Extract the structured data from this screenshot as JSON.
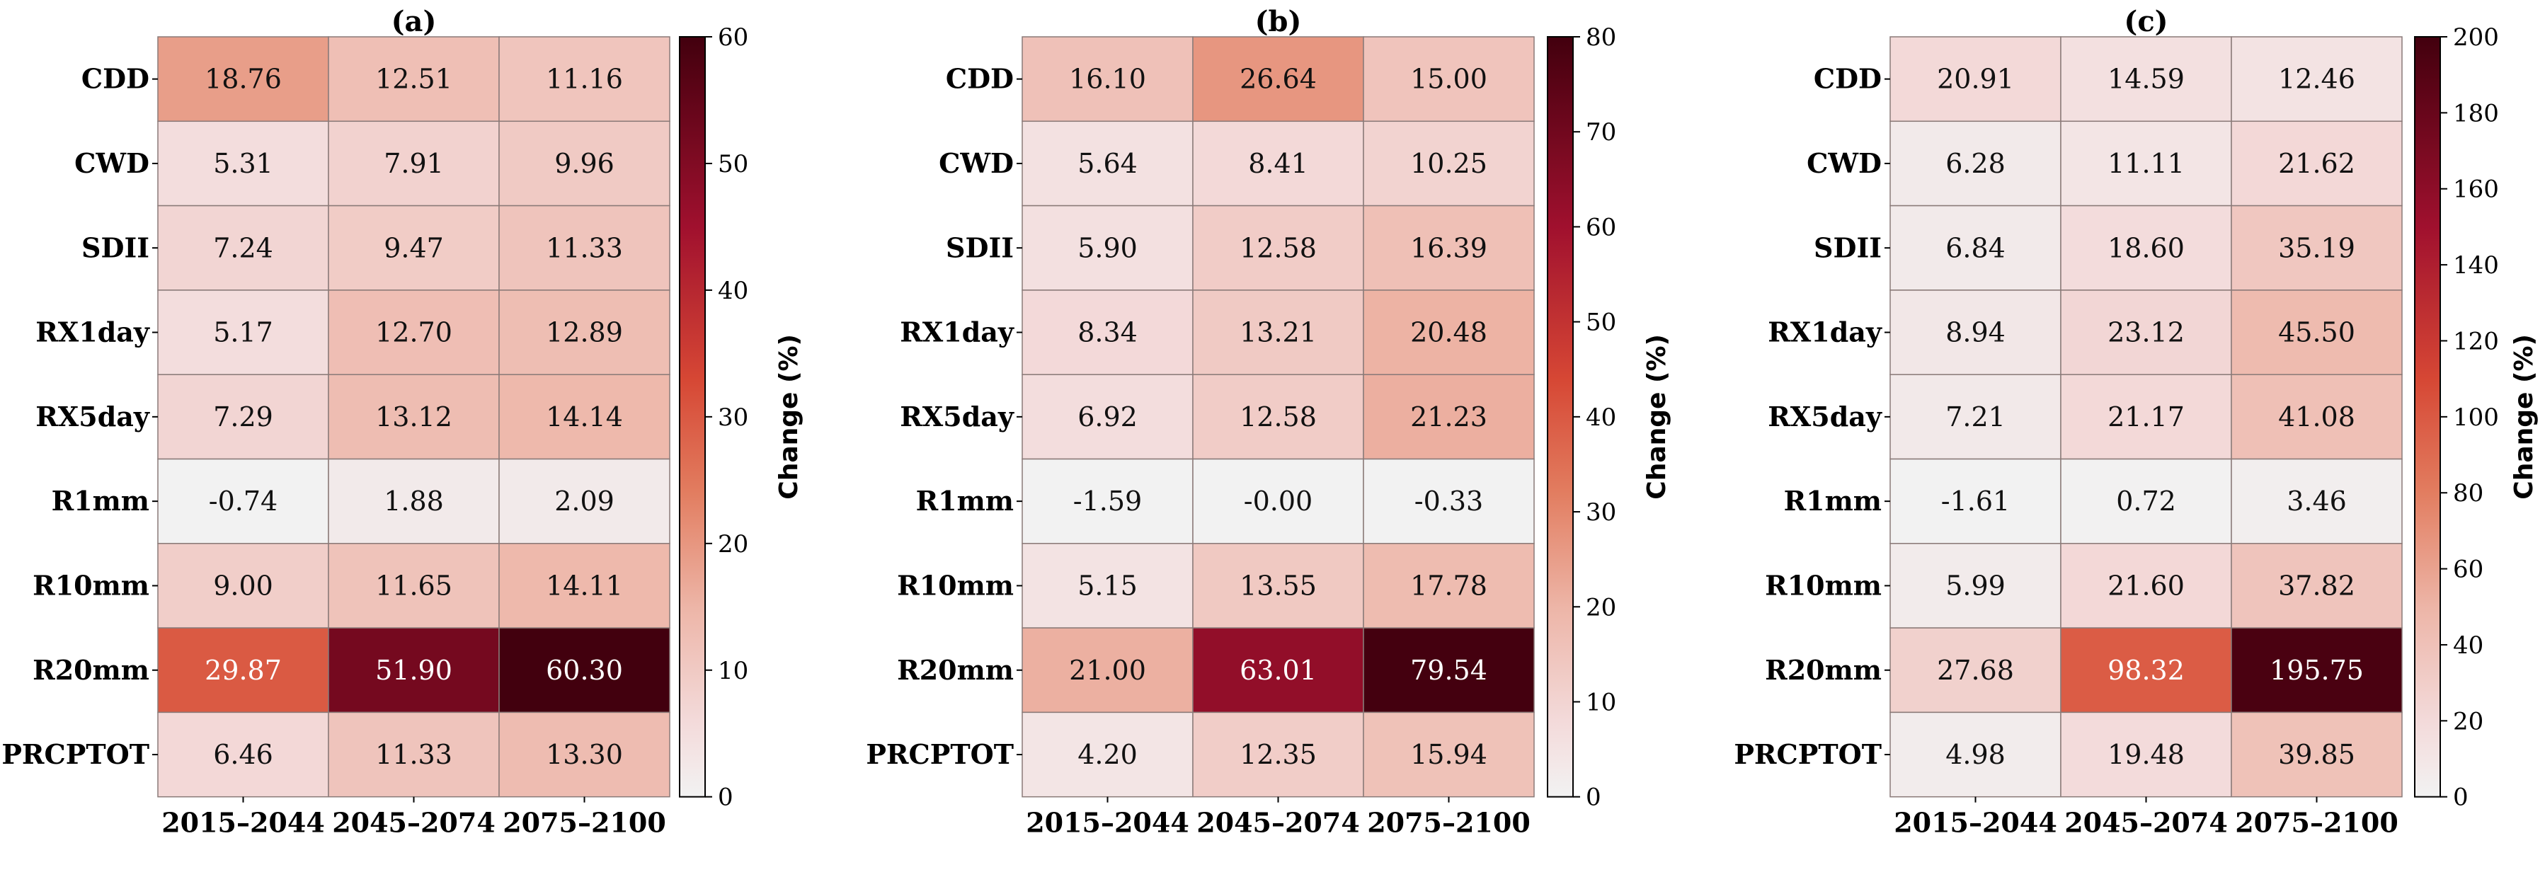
{
  "chart_data": [
    {
      "type": "heatmap",
      "title": "(a)",
      "rows": [
        "CDD",
        "CWD",
        "SDII",
        "RX1day",
        "RX5day",
        "R1mm",
        "R10mm",
        "R20mm",
        "PRCPTOT"
      ],
      "columns": [
        "2015–2044",
        "2045–2074",
        "2075–2100"
      ],
      "values": [
        [
          "18.76",
          "12.51",
          "11.16"
        ],
        [
          "5.31",
          "7.91",
          "9.96"
        ],
        [
          "7.24",
          "9.47",
          "11.33"
        ],
        [
          "5.17",
          "12.70",
          "12.89"
        ],
        [
          "7.29",
          "13.12",
          "14.14"
        ],
        [
          "-0.74",
          "1.88",
          "2.09"
        ],
        [
          "9.00",
          "11.65",
          "14.11"
        ],
        [
          "29.87",
          "51.90",
          "60.30"
        ],
        [
          "6.46",
          "11.33",
          "13.30"
        ]
      ],
      "colorbar": {
        "label": "Change (%)",
        "min": 0,
        "max": 60,
        "ticks": [
          "0",
          "10",
          "20",
          "30",
          "40",
          "50",
          "60"
        ]
      }
    },
    {
      "type": "heatmap",
      "title": "(b)",
      "rows": [
        "CDD",
        "CWD",
        "SDII",
        "RX1day",
        "RX5day",
        "R1mm",
        "R10mm",
        "R20mm",
        "PRCPTOT"
      ],
      "columns": [
        "2015–2044",
        "2045–2074",
        "2075–2100"
      ],
      "values": [
        [
          "16.10",
          "26.64",
          "15.00"
        ],
        [
          "5.64",
          "8.41",
          "10.25"
        ],
        [
          "5.90",
          "12.58",
          "16.39"
        ],
        [
          "8.34",
          "13.21",
          "20.48"
        ],
        [
          "6.92",
          "12.58",
          "21.23"
        ],
        [
          "-1.59",
          "-0.00",
          "-0.33"
        ],
        [
          "5.15",
          "13.55",
          "17.78"
        ],
        [
          "21.00",
          "63.01",
          "79.54"
        ],
        [
          "4.20",
          "12.35",
          "15.94"
        ]
      ],
      "colorbar": {
        "label": "Change (%)",
        "min": 0,
        "max": 80,
        "ticks": [
          "0",
          "10",
          "20",
          "30",
          "40",
          "50",
          "60",
          "70",
          "80"
        ]
      }
    },
    {
      "type": "heatmap",
      "title": "(c)",
      "rows": [
        "CDD",
        "CWD",
        "SDII",
        "RX1day",
        "RX5day",
        "R1mm",
        "R10mm",
        "R20mm",
        "PRCPTOT"
      ],
      "columns": [
        "2015–2044",
        "2045–2074",
        "2075–2100"
      ],
      "values": [
        [
          "20.91",
          "14.59",
          "12.46"
        ],
        [
          "6.28",
          "11.11",
          "21.62"
        ],
        [
          "6.84",
          "18.60",
          "35.19"
        ],
        [
          "8.94",
          "23.12",
          "45.50"
        ],
        [
          "7.21",
          "21.17",
          "41.08"
        ],
        [
          "-1.61",
          "0.72",
          "3.46"
        ],
        [
          "5.99",
          "21.60",
          "37.82"
        ],
        [
          "27.68",
          "98.32",
          "195.75"
        ],
        [
          "4.98",
          "19.48",
          "39.85"
        ]
      ],
      "colorbar": {
        "label": "Change (%)",
        "min": 0,
        "max": 200,
        "ticks": [
          "0",
          "20",
          "40",
          "60",
          "80",
          "100",
          "120",
          "140",
          "160",
          "180",
          "200"
        ]
      }
    }
  ]
}
